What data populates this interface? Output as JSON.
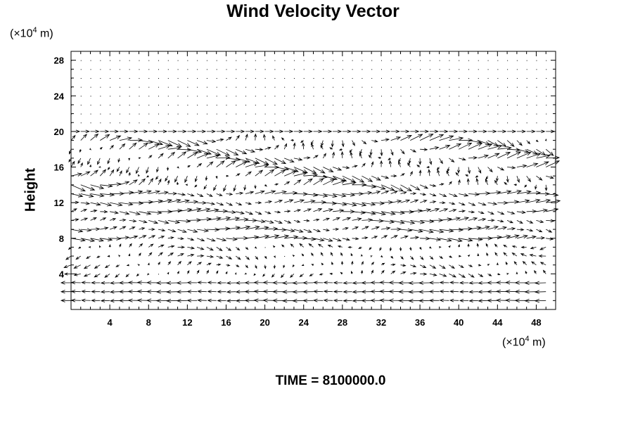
{
  "chart_data": {
    "type": "vector",
    "title": "Wind Velocity Vector",
    "ylabel": "Height",
    "xlabel": "",
    "x_unit": {
      "prefix": "(×10",
      "exp": "4",
      "suffix": " m)"
    },
    "y_unit": {
      "prefix": "(×10",
      "exp": "4",
      "suffix": " m)"
    },
    "xlim": [
      0,
      50
    ],
    "ylim": [
      0,
      29
    ],
    "xticks": [
      4,
      8,
      12,
      16,
      20,
      24,
      28,
      32,
      36,
      40,
      44,
      48
    ],
    "yticks": [
      4,
      8,
      12,
      16,
      20,
      24,
      28
    ],
    "grid_spacing": 1,
    "vector_field": {
      "x_start": 0,
      "x_step": 1,
      "nx": 50,
      "y_start": 1,
      "y_step": 1,
      "ny": 28,
      "flow_top": 20,
      "description_free": true
    },
    "annotation": "TIME = 8100000.0"
  }
}
